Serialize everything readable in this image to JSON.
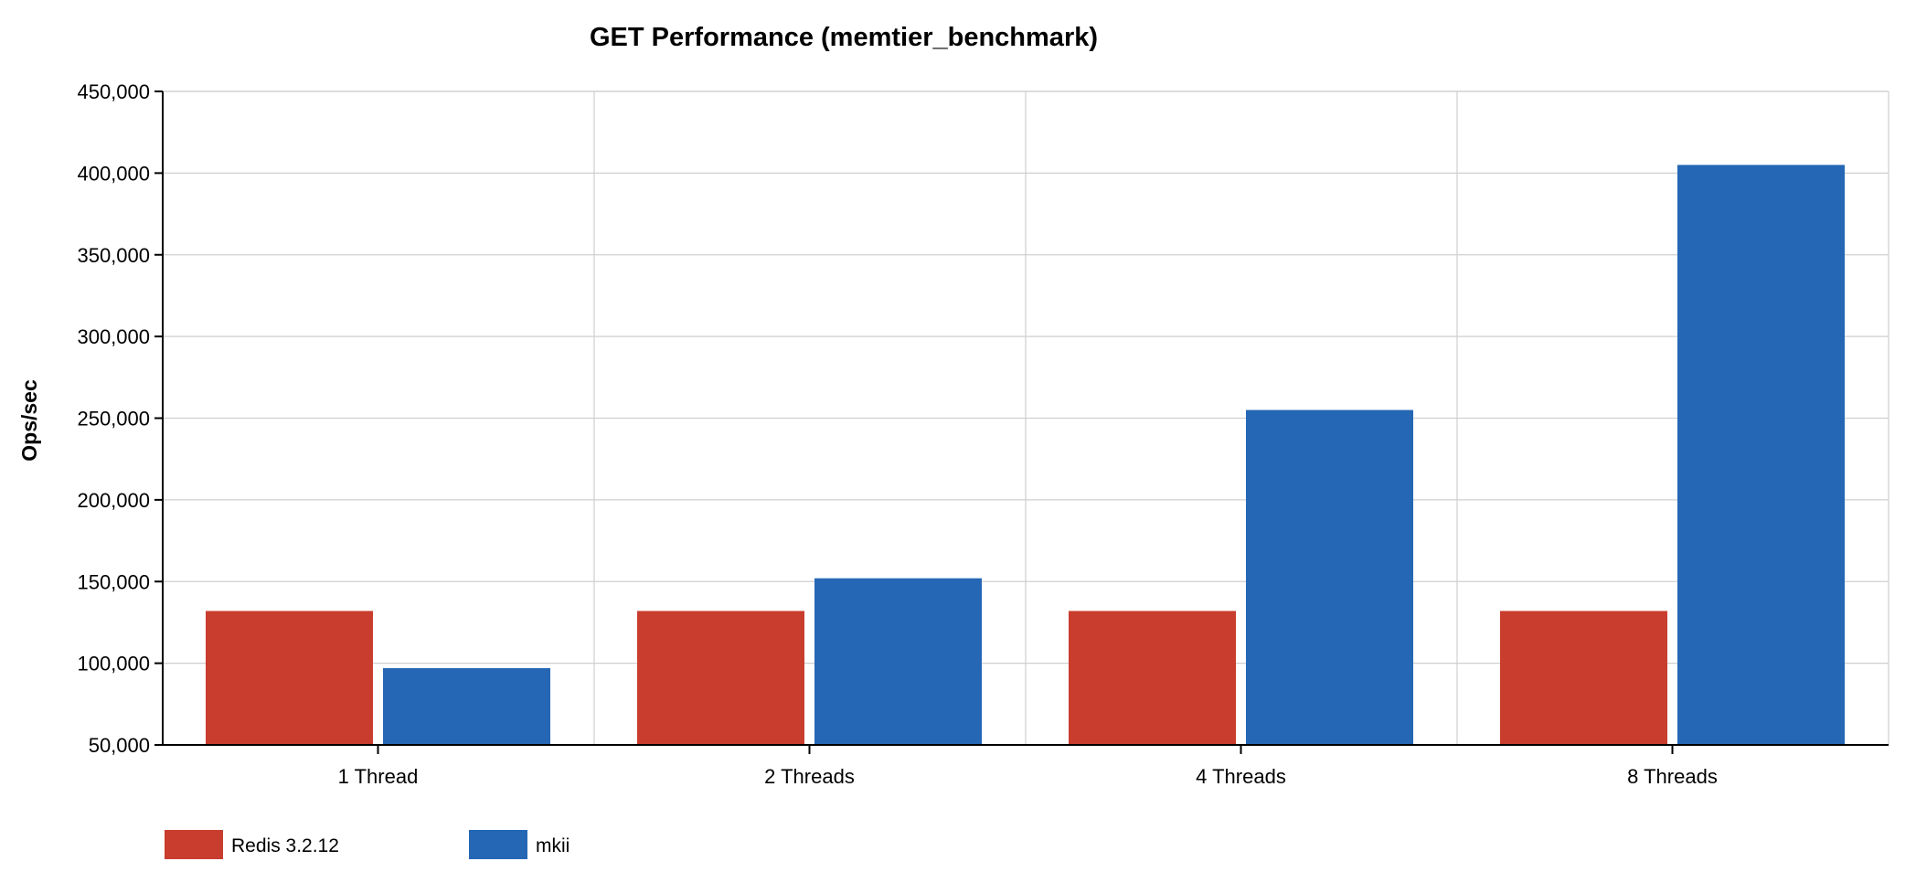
{
  "chart_data": {
    "type": "bar",
    "title": "GET Performance (memtier_benchmark)",
    "xlabel": "",
    "ylabel": "Ops/sec",
    "categories": [
      "1 Thread",
      "2 Threads",
      "4 Threads",
      "8 Threads"
    ],
    "series": [
      {
        "name": "Redis 3.2.12",
        "color": "#c93d2e",
        "values": [
          132000,
          132000,
          132000,
          132000
        ]
      },
      {
        "name": "mkii",
        "color": "#2567b4",
        "values": [
          97000,
          152000,
          255000,
          405000
        ]
      }
    ],
    "ylim": [
      50000,
      450000
    ],
    "yticks": [
      50000,
      100000,
      150000,
      200000,
      250000,
      300000,
      350000,
      400000,
      450000
    ],
    "ytick_labels": [
      "50,000",
      "100,000",
      "150,000",
      "200,000",
      "250,000",
      "300,000",
      "350,000",
      "400,000",
      "450,000"
    ],
    "grid": true,
    "legend_position": "bottom-left"
  }
}
